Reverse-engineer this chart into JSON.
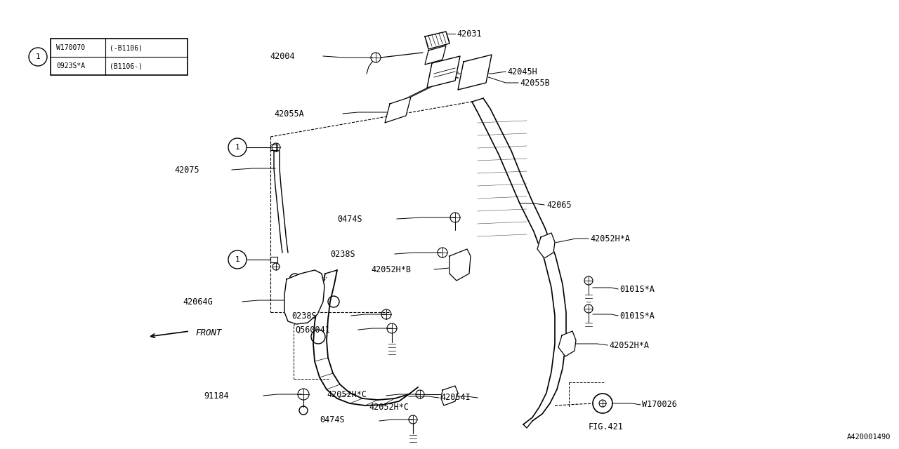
{
  "bg_color": "#ffffff",
  "line_color": "#000000",
  "watermark": "A420001490",
  "legend_rows": [
    [
      "W170070",
      "(-B1106)"
    ],
    [
      "0923S*A",
      "(B1106-)"
    ]
  ]
}
